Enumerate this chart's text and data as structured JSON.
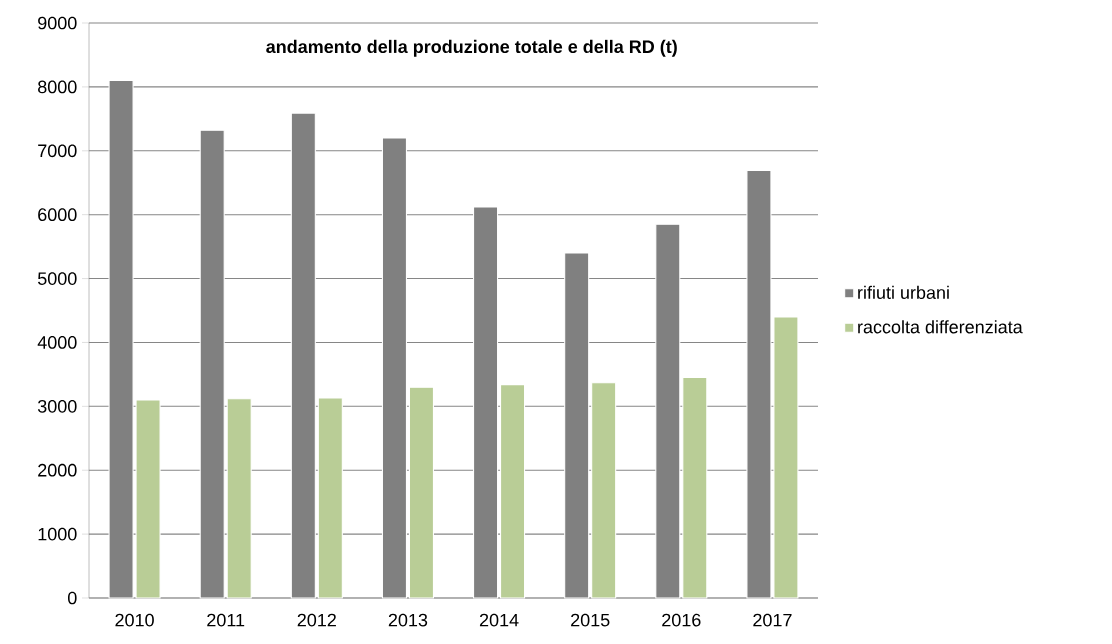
{
  "chart_data": {
    "type": "bar",
    "title": "andamento della produzione totale e della RD (t)",
    "categories": [
      "2010",
      "2011",
      "2012",
      "2013",
      "2014",
      "2015",
      "2016",
      "2017"
    ],
    "series": [
      {
        "name": "rifiuti urbani",
        "color": "#808080",
        "values": [
          8100,
          7320,
          7590,
          7200,
          6120,
          5400,
          5850,
          6690
        ]
      },
      {
        "name": "raccolta differenziata",
        "color": "#b9cd96",
        "values": [
          3100,
          3120,
          3130,
          3300,
          3340,
          3370,
          3450,
          4400
        ]
      }
    ],
    "ylim": [
      0,
      9000
    ],
    "yticks": [
      0,
      1000,
      2000,
      3000,
      4000,
      5000,
      6000,
      7000,
      8000,
      9000
    ],
    "grid": "y",
    "legend": "right"
  }
}
